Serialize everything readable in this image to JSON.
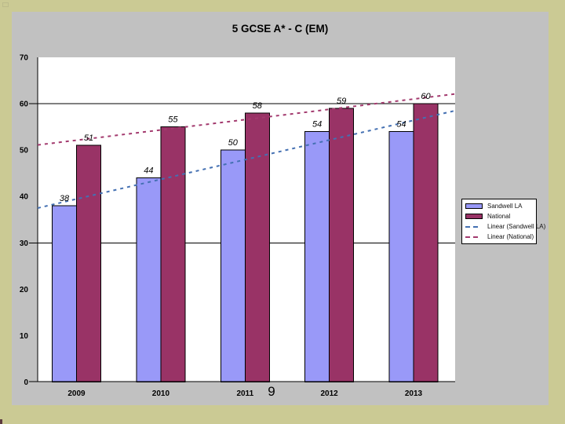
{
  "page": {
    "background_color": "#cbca94",
    "page_number": "9"
  },
  "chart": {
    "canvas_color": "#c1c1c1",
    "plot_color": "#ffffff",
    "axis_color": "#000000"
  },
  "chart_data": {
    "type": "bar",
    "title": "5 GCSE A* - C (EM)",
    "categories": [
      "2009",
      "2010",
      "2011",
      "2012",
      "2013"
    ],
    "series": [
      {
        "name": "Sandwell LA",
        "values": [
          38,
          44,
          50,
          54,
          54
        ],
        "color": "#9999f8"
      },
      {
        "name": "National",
        "values": [
          51,
          55,
          58,
          59,
          60
        ],
        "color": "#993366"
      }
    ],
    "trendlines": [
      {
        "name": "Linear (Sandwell LA)",
        "color": "#4470b2",
        "start_value": 37.5,
        "end_value": 58.5
      },
      {
        "name": "Linear (National)",
        "color": "#a33a6e",
        "start_value": 51.1,
        "end_value": 62.1
      }
    ],
    "data_labels": true,
    "ylim": [
      0,
      70
    ],
    "yticks": [
      0,
      10,
      20,
      30,
      40,
      50,
      60,
      70
    ],
    "gridlines": [
      30,
      60
    ],
    "xlabel": "",
    "ylabel": "",
    "legend_position": "right-middle"
  }
}
